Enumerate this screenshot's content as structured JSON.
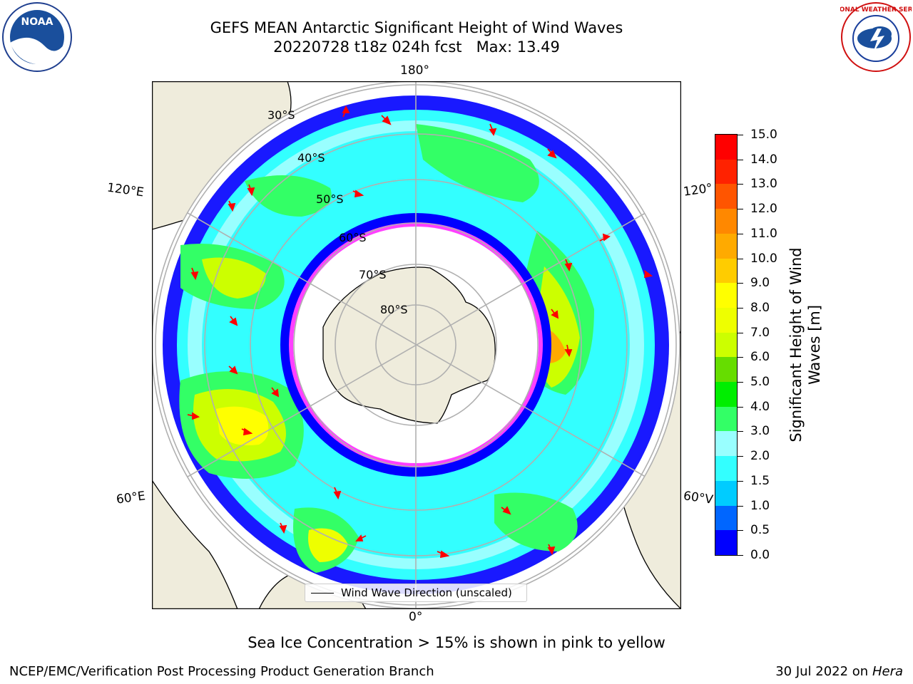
{
  "title": {
    "line1": "GEFS MEAN Antarctic Significant Height of Wind Waves",
    "line2": "20220728 t18z 024h fcst   Max: 13.49"
  },
  "logos": {
    "left": {
      "name": "noaa-logo",
      "text": "NOAA"
    },
    "right": {
      "name": "national-weather-service-logo",
      "text": "NATIONAL WEATHER SERVICE"
    }
  },
  "map": {
    "projection": "south-polar-stereographic",
    "longitude_labels": {
      "top": "180°",
      "bottom": "0°",
      "upper_left": "120°E",
      "upper_right": "120°",
      "lower_left": "60°E",
      "lower_right": "60°V"
    },
    "latitude_labels": [
      "30°S",
      "40°S",
      "50°S",
      "60°S",
      "70°S",
      "80°S"
    ],
    "colors": {
      "land": "#efecdc",
      "coast": "#000000",
      "gridlines": "#b0b0b0",
      "arrows": "#ff0000",
      "sea_ice": "#ff40ff"
    },
    "legend_label": "Wind Wave Direction (unscaled)"
  },
  "colorbar": {
    "title_line1": "Significant Height of Wind",
    "title_line2": "Waves [m]",
    "ticks": [
      "0.0",
      "0.5",
      "1.0",
      "1.5",
      "2.0",
      "3.0",
      "4.0",
      "5.0",
      "6.0",
      "7.0",
      "8.0",
      "9.0",
      "10.0",
      "11.0",
      "12.0",
      "13.0",
      "14.0",
      "15.0"
    ],
    "colors": [
      "#0000ff",
      "#0066ff",
      "#00ccff",
      "#33ffff",
      "#99ffff",
      "#33ff66",
      "#00ee00",
      "#66dd00",
      "#ccff00",
      "#eeff00",
      "#ffff00",
      "#ffcc00",
      "#ffaa00",
      "#ff8800",
      "#ff5500",
      "#ff2200",
      "#ff0000"
    ]
  },
  "subtitle": "Sea Ice Concentration > 15% is shown in pink to yellow",
  "footer": {
    "left": "NCEP/EMC/Verification Post Processing Product Generation Branch",
    "right_date": "30 Jul 2022 on ",
    "right_machine": "Hera"
  }
}
